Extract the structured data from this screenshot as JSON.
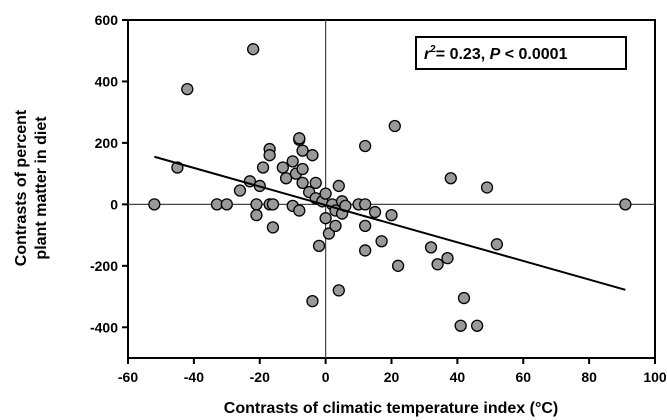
{
  "chart_data": {
    "type": "scatter",
    "xlabel": "Contrasts of climatic temperature index (°C)",
    "ylabel_lines": [
      "Contrasts of percent",
      "plant matter in diet"
    ],
    "xlim": [
      -60,
      100
    ],
    "ylim": [
      -500,
      600
    ],
    "xticks": [
      -60,
      -40,
      -20,
      0,
      20,
      40,
      60,
      80,
      100
    ],
    "yticks": [
      -400,
      -200,
      0,
      200,
      400,
      600
    ],
    "zero_lines": true,
    "grid": false,
    "annotation": {
      "r_symbol": "r",
      "superscript": "2",
      "r2_text": "= 0.23, ",
      "p_symbol": "P",
      "p_text": " < 0.0001"
    },
    "regression": {
      "x": [
        -52,
        91
      ],
      "y": [
        155,
        -278
      ]
    },
    "marker_color": "#999999",
    "points": [
      [
        -52,
        0
      ],
      [
        -45,
        120
      ],
      [
        -42,
        375
      ],
      [
        -33,
        0
      ],
      [
        -30,
        0
      ],
      [
        -26,
        45
      ],
      [
        -23,
        75
      ],
      [
        -22,
        505
      ],
      [
        -21,
        -35
      ],
      [
        -21,
        0
      ],
      [
        -20,
        60
      ],
      [
        -19,
        120
      ],
      [
        -17,
        0
      ],
      [
        -17,
        180
      ],
      [
        -17,
        160
      ],
      [
        -16,
        -75
      ],
      [
        -16,
        0
      ],
      [
        -13,
        120
      ],
      [
        -12,
        85
      ],
      [
        -10,
        140
      ],
      [
        -10,
        -5
      ],
      [
        -9,
        100
      ],
      [
        -8,
        210
      ],
      [
        -8,
        215
      ],
      [
        -8,
        -20
      ],
      [
        -7,
        175
      ],
      [
        -7,
        115
      ],
      [
        -7,
        70
      ],
      [
        -5,
        40
      ],
      [
        -4,
        160
      ],
      [
        -4,
        -315
      ],
      [
        -3,
        70
      ],
      [
        -3,
        20
      ],
      [
        -2,
        -135
      ],
      [
        -1,
        10
      ],
      [
        0,
        -45
      ],
      [
        0,
        35
      ],
      [
        1,
        -95
      ],
      [
        2,
        0
      ],
      [
        3,
        -20
      ],
      [
        3,
        -70
      ],
      [
        4,
        60
      ],
      [
        4,
        -280
      ],
      [
        5,
        -30
      ],
      [
        5,
        10
      ],
      [
        6,
        -5
      ],
      [
        10,
        0
      ],
      [
        12,
        190
      ],
      [
        12,
        -150
      ],
      [
        12,
        0
      ],
      [
        12,
        -70
      ],
      [
        15,
        -25
      ],
      [
        17,
        -120
      ],
      [
        20,
        -35
      ],
      [
        21,
        255
      ],
      [
        22,
        -200
      ],
      [
        32,
        -140
      ],
      [
        34,
        -195
      ],
      [
        37,
        -175
      ],
      [
        38,
        85
      ],
      [
        41,
        -395
      ],
      [
        42,
        -305
      ],
      [
        46,
        -395
      ],
      [
        49,
        55
      ],
      [
        52,
        -130
      ],
      [
        91,
        0
      ]
    ]
  }
}
